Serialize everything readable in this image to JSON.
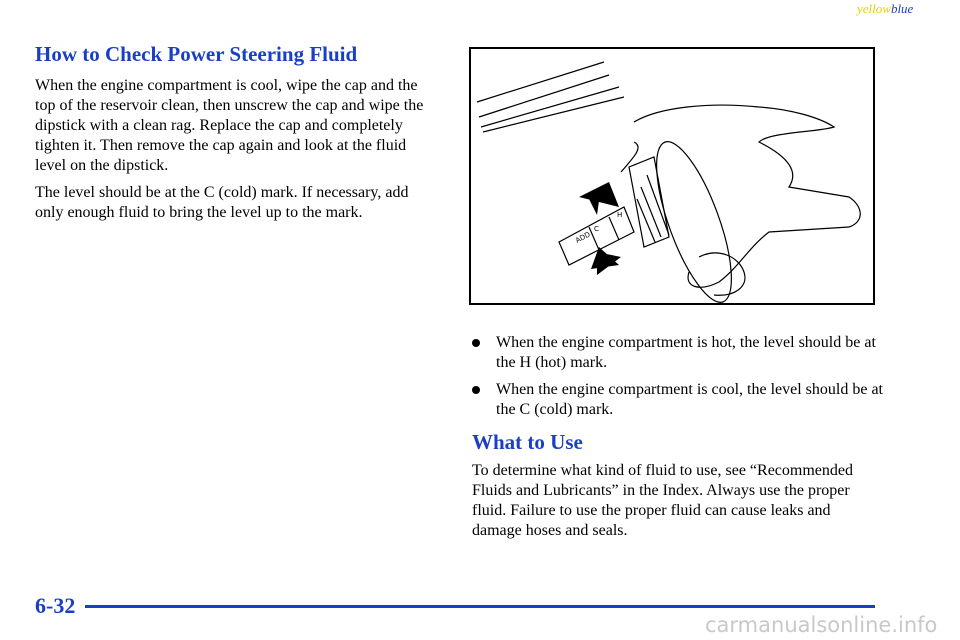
{
  "header": {
    "tag_yellow": "yellow",
    "tag_blue": "blue"
  },
  "section1": {
    "title": "How to Check Power Steering Fluid",
    "paragraphs": [
      "When the engine compartment is cool, wipe the cap and the top of the reservoir clean, then unscrew the cap and wipe the dipstick with a clean rag. Replace the cap and completely tighten it. Then remove the cap again and look at the fluid level on the dipstick.",
      "The level should be at the C (cold) mark. If necessary, add only enough fluid to bring the level up to the mark."
    ]
  },
  "figure": {
    "labels": [
      "ADD",
      "C",
      "H"
    ]
  },
  "bullets": [
    "When the engine compartment is hot, the level should be at the H (hot) mark.",
    "When the engine compartment is cool, the level should be at the C (cold) mark."
  ],
  "section2": {
    "title": "What to Use",
    "paragraphs": [
      "To determine what kind of fluid to use, see “Recommended Fluids and Lubricants” in the Index. Always use the proper fluid. Failure to use the proper fluid can cause leaks and damage hoses and seals."
    ]
  },
  "footer": {
    "page": "6-32",
    "watermark": "carmanualsonline.info"
  }
}
